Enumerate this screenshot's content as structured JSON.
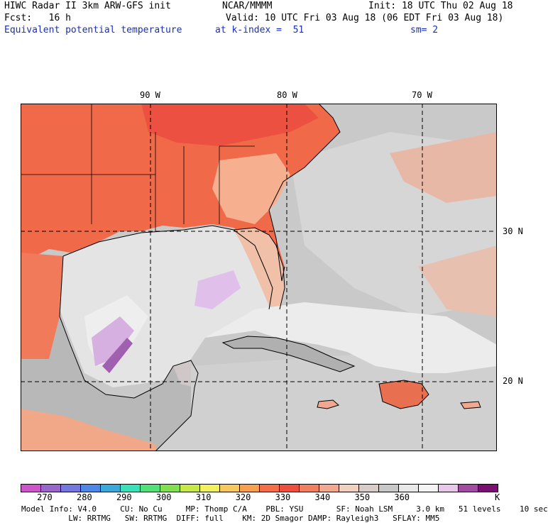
{
  "header": {
    "title": "HIWC Radar II 3km ARW-GFS init",
    "org": "NCAR/MMMM",
    "init": "Init: 18 UTC Thu 02 Aug 18",
    "fcst": "Fcst:   16 h",
    "valid": "Valid: 10 UTC Fri 03 Aug 18 (06 EDT Fri 03 Aug 18)",
    "field": "Equivalent potential temperature",
    "level": "at k-index =  51",
    "smooth": "sm= 2"
  },
  "map": {
    "lon_labels": [
      "90 W",
      "80 W",
      "70 W"
    ],
    "lat_labels": [
      "30 N",
      "20 N"
    ]
  },
  "colorbar": {
    "colors": [
      "#cc55cc",
      "#9966cc",
      "#7777e0",
      "#4e88e6",
      "#3aa8d8",
      "#3ae0b8",
      "#52e07a",
      "#80e050",
      "#c8e84a",
      "#f0f060",
      "#f8c860",
      "#f6a050",
      "#f46e4a",
      "#ee5040",
      "#f08060",
      "#f4a890",
      "#f0d0c0",
      "#d8ccc8",
      "#c8c8c8",
      "#e8e8e8",
      "#f4f4f4",
      "#e8c8e8",
      "#a04ca0",
      "#7a1070"
    ],
    "tick_labels": [
      "270",
      "280",
      "290",
      "300",
      "310",
      "320",
      "330",
      "340",
      "350",
      "360"
    ],
    "unit": "K"
  },
  "footer": {
    "line1": "Model Info: V4.0     CU: No Cu     MP: Thomp C/A    PBL: YSU       SF: Noah LSM     3.0 km   51 levels    10 sec",
    "line2": "          LW: RRTMG   SW: RRTMG  DIFF: full    KM: 2D Smagor DAMP: Rayleigh3   SFLAY: MM5"
  }
}
